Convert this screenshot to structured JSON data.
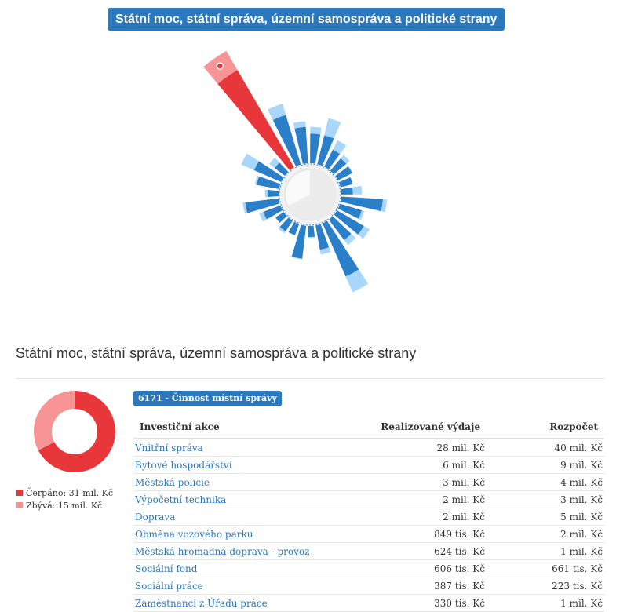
{
  "header": {
    "title": "Státní moc, státní správa, územní samospráva a politické strany"
  },
  "section": {
    "heading": "Státní moc, státní správa, územní samospráva a politické strany"
  },
  "colors": {
    "accent": "#2c78bd",
    "spent_blue": "#2a7fc8",
    "remaining_blue": "#a8d7fb",
    "spent_red": "#e8373a",
    "remaining_red": "#f79496"
  },
  "radial_chart": {
    "type": "radial-bar",
    "highlighted_index": 0,
    "items": [
      {
        "spent": 28,
        "total": 40
      },
      {
        "spent": 6,
        "total": 9
      },
      {
        "spent": 3,
        "total": 4
      },
      {
        "spent": 2,
        "total": 3
      },
      {
        "spent": 2,
        "total": 5
      },
      {
        "spent": 0.849,
        "total": 2
      },
      {
        "spent": 0.624,
        "total": 1
      },
      {
        "spent": 0.606,
        "total": 0.661
      },
      {
        "spent": 0.387,
        "total": 0.223
      },
      {
        "spent": 0.33,
        "total": 1
      },
      {
        "spent": 3.9,
        "total": 4.7
      },
      {
        "spent": 1.2,
        "total": 1.5
      },
      {
        "spent": 2.2,
        "total": 3.2
      },
      {
        "spent": 1.5,
        "total": 2.3
      },
      {
        "spent": 7.5,
        "total": 12.5
      },
      {
        "spent": 1.4,
        "total": 2.0
      },
      {
        "spent": 0.3,
        "total": 0.35
      },
      {
        "spent": 2.5,
        "total": 2.6
      },
      {
        "spent": 0.35,
        "total": 0.35
      },
      {
        "spent": 0.4,
        "total": 0.55
      },
      {
        "spent": 0.25,
        "total": 0.25
      },
      {
        "spent": 0.8,
        "total": 1.2
      },
      {
        "spent": 2.6,
        "total": 3.0
      },
      {
        "spent": 0.3,
        "total": 0.45
      },
      {
        "spent": 1.2,
        "total": 1.4
      },
      {
        "spent": 2.0,
        "total": 4.3
      },
      {
        "spent": 0.4,
        "total": 0.9
      }
    ]
  },
  "summary": {
    "spent_label": "Čerpáno: 31 mil. Kč",
    "remaining_label": "Zbývá: 15 mil. Kč",
    "spent": 31,
    "remaining": 15
  },
  "category": {
    "label": "6171 - Činnost místní správy"
  },
  "table": {
    "headers": [
      "Investiční akce",
      "Realizované výdaje",
      "Rozpočet"
    ],
    "rows": [
      [
        "Vnitřní správa",
        "28 mil. Kč",
        "40 mil. Kč"
      ],
      [
        "Bytové hospodářství",
        "6 mil. Kč",
        "9 mil. Kč"
      ],
      [
        "Městská policie",
        "3 mil. Kč",
        "4 mil. Kč"
      ],
      [
        "Výpočetní technika",
        "2 mil. Kč",
        "3 mil. Kč"
      ],
      [
        "Doprava",
        "2 mil. Kč",
        "5 mil. Kč"
      ],
      [
        "Obměna vozového parku",
        "849 tis. Kč",
        "2 mil. Kč"
      ],
      [
        "Městská hromadná doprava - provoz",
        "624 tis. Kč",
        "1 mil. Kč"
      ],
      [
        "Sociální fond",
        "606 tis. Kč",
        "661 tis. Kč"
      ],
      [
        "Sociální práce",
        "387 tis. Kč",
        "223 tis. Kč"
      ],
      [
        "Zaměstnanci z Úřadu práce",
        "330 tis. Kč",
        "1 mil. Kč"
      ]
    ]
  }
}
